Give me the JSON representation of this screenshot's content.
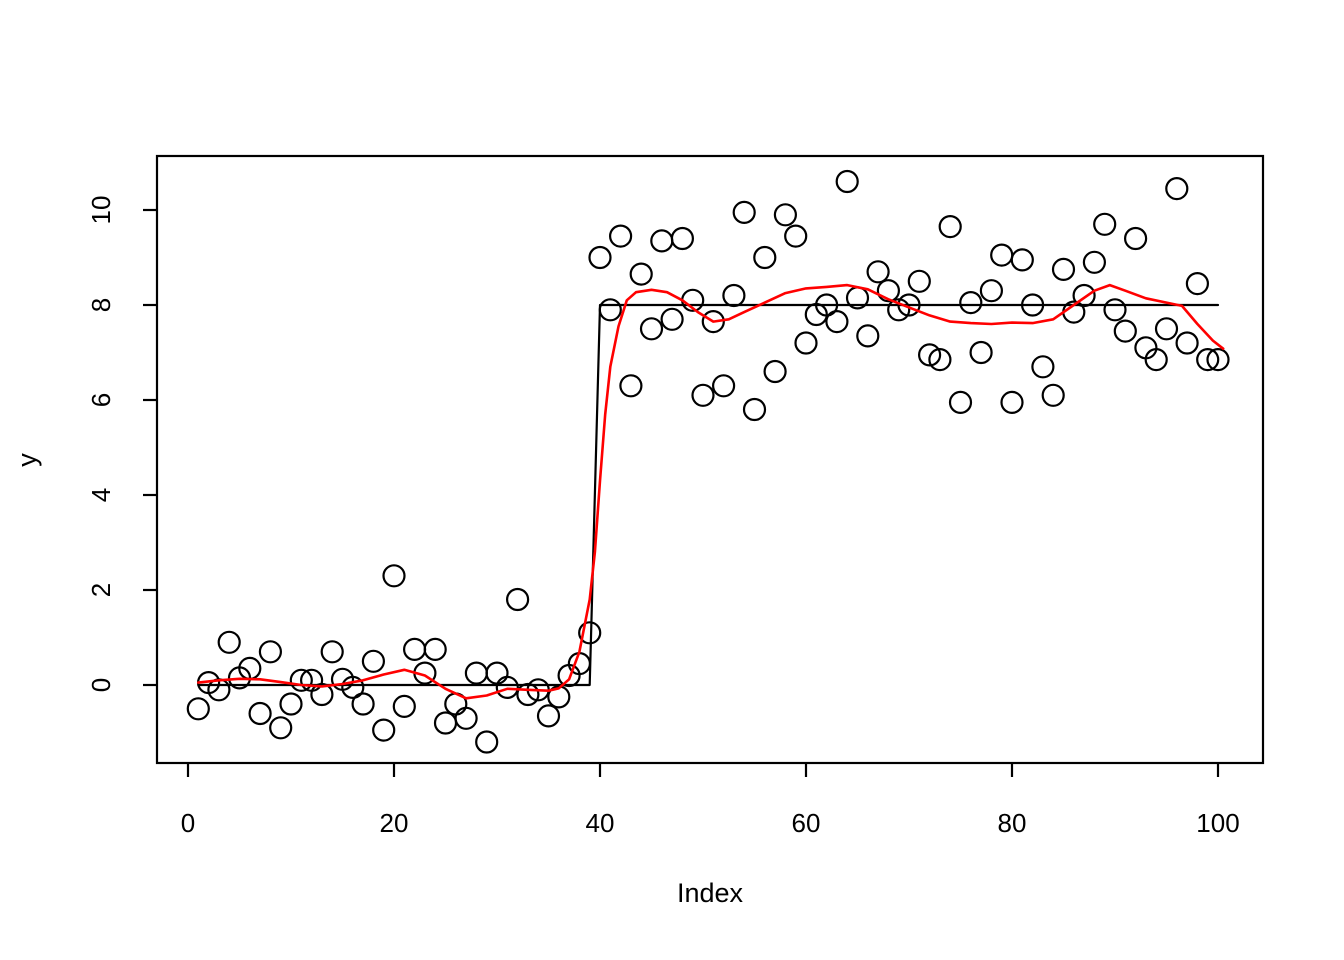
{
  "figure": {
    "background": "#ffffff",
    "title": ""
  },
  "chart_data": {
    "type": "scatter",
    "title": "",
    "xlabel": "Index",
    "ylabel": "y",
    "legend": "none",
    "grid": false,
    "box": true,
    "xlim": [
      -3.0,
      104.4
    ],
    "ylim": [
      -1.65,
      11.15
    ],
    "x_ticks": [
      0,
      20,
      40,
      60,
      80,
      100
    ],
    "x_tick_labels": [
      "0",
      "20",
      "40",
      "60",
      "80",
      "100"
    ],
    "y_ticks": [
      0,
      2,
      4,
      6,
      8,
      10
    ],
    "y_tick_labels": [
      "0",
      "2",
      "4",
      "6",
      "8",
      "10"
    ],
    "colors": {
      "points": "#000000",
      "step_line": "#000000",
      "smooth_line": "#ff0000",
      "axis": "#000000"
    },
    "marker": "open-circle",
    "series": [
      {
        "name": "observations",
        "kind": "points",
        "color_key": "points",
        "x": [
          1,
          2,
          3,
          4,
          5,
          6,
          7,
          8,
          9,
          10,
          11,
          12,
          13,
          14,
          15,
          16,
          17,
          18,
          19,
          20,
          21,
          22,
          23,
          24,
          25,
          26,
          27,
          28,
          29,
          30,
          31,
          32,
          33,
          34,
          35,
          36,
          37,
          38,
          39,
          40,
          41,
          42,
          43,
          44,
          45,
          46,
          47,
          48,
          49,
          50,
          51,
          52,
          53,
          54,
          55,
          56,
          57,
          58,
          59,
          60,
          61,
          62,
          63,
          64,
          65,
          66,
          67,
          68,
          69,
          70,
          71,
          72,
          73,
          74,
          75,
          76,
          77,
          78,
          79,
          80,
          81,
          82,
          83,
          84,
          85,
          86,
          87,
          88,
          89,
          90,
          91,
          92,
          93,
          94,
          95,
          96,
          97,
          98,
          99,
          100
        ],
        "y": [
          -0.5,
          0.05,
          -0.1,
          0.9,
          0.15,
          0.35,
          -0.6,
          0.7,
          -0.9,
          -0.4,
          0.1,
          0.1,
          -0.2,
          0.7,
          0.12,
          -0.05,
          -0.4,
          0.5,
          -0.95,
          2.3,
          -0.45,
          0.75,
          0.25,
          0.75,
          -0.8,
          -0.4,
          -0.7,
          0.25,
          -1.2,
          0.25,
          -0.05,
          1.8,
          -0.2,
          -0.1,
          -0.65,
          -0.25,
          0.2,
          0.45,
          1.1,
          9.0,
          7.9,
          9.45,
          6.3,
          8.65,
          7.5,
          9.35,
          7.7,
          9.4,
          8.1,
          6.1,
          7.65,
          6.3,
          8.2,
          9.95,
          5.8,
          9.0,
          6.6,
          9.9,
          9.45,
          7.2,
          7.8,
          8.0,
          7.65,
          10.6,
          8.15,
          7.35,
          8.7,
          8.3,
          7.9,
          8.0,
          8.5,
          6.95,
          6.85,
          9.65,
          5.95,
          8.05,
          7.0,
          8.3,
          9.05,
          5.95,
          8.95,
          8.0,
          6.7,
          6.1,
          8.75,
          7.85,
          8.2,
          8.9,
          9.7,
          7.9,
          7.45,
          9.4,
          7.1,
          6.85,
          7.5,
          10.45,
          7.2,
          8.45,
          6.85,
          6.85
        ]
      },
      {
        "name": "step-function",
        "kind": "line",
        "color_key": "step_line",
        "width": 2.2,
        "x": [
          1,
          39,
          40,
          100
        ],
        "y": [
          0,
          0,
          8,
          8
        ]
      },
      {
        "name": "lowess-smooth",
        "kind": "line",
        "color_key": "smooth_line",
        "width": 2.6,
        "x": [
          1,
          3,
          5,
          7,
          9,
          11,
          13,
          15,
          17,
          19,
          21,
          23,
          25,
          27,
          29,
          31,
          33,
          35,
          36,
          37,
          38,
          39,
          39.5,
          40,
          40.5,
          41,
          41.8,
          42.6,
          43.5,
          45,
          46.5,
          48,
          49.5,
          51,
          52.5,
          54,
          56,
          58,
          60,
          62,
          64,
          66,
          68,
          70,
          72,
          74,
          76,
          78,
          80,
          82,
          84,
          86,
          88,
          89.5,
          91,
          93,
          95,
          96.5,
          98,
          99.5,
          100.5
        ],
        "y": [
          0.05,
          0.1,
          0.13,
          0.12,
          0.06,
          0.0,
          -0.03,
          0.02,
          0.1,
          0.22,
          0.32,
          0.2,
          -0.08,
          -0.28,
          -0.22,
          -0.08,
          -0.1,
          -0.12,
          -0.07,
          0.12,
          0.7,
          1.8,
          2.8,
          4.3,
          5.7,
          6.7,
          7.55,
          8.1,
          8.27,
          8.32,
          8.27,
          8.1,
          7.85,
          7.65,
          7.7,
          7.85,
          8.05,
          8.25,
          8.35,
          8.38,
          8.42,
          8.33,
          8.12,
          7.95,
          7.78,
          7.65,
          7.62,
          7.6,
          7.63,
          7.62,
          7.7,
          8.0,
          8.3,
          8.42,
          8.3,
          8.14,
          8.05,
          7.98,
          7.6,
          7.25,
          7.08
        ]
      }
    ]
  }
}
